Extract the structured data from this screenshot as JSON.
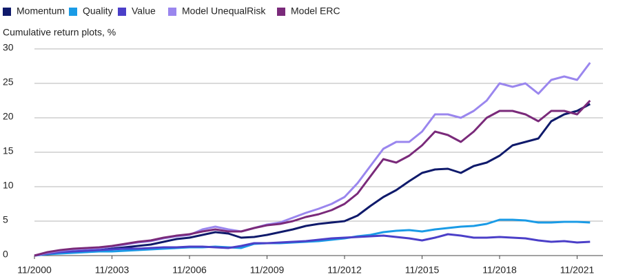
{
  "chart_data": {
    "type": "line",
    "subtitle": "Cumulative return plots, %",
    "x": [
      "11/2000",
      "05/2001",
      "11/2001",
      "05/2002",
      "11/2002",
      "05/2003",
      "11/2003",
      "05/2004",
      "11/2004",
      "05/2005",
      "11/2005",
      "05/2006",
      "11/2006",
      "05/2007",
      "11/2007",
      "05/2008",
      "11/2008",
      "05/2009",
      "11/2009",
      "05/2010",
      "11/2010",
      "05/2011",
      "11/2011",
      "05/2012",
      "11/2012",
      "05/2013",
      "11/2013",
      "05/2014",
      "11/2014",
      "05/2015",
      "11/2015",
      "05/2016",
      "11/2016",
      "05/2017",
      "11/2017",
      "05/2018",
      "11/2018",
      "05/2019",
      "11/2019",
      "05/2020",
      "11/2020",
      "05/2021",
      "11/2021",
      "05/2022"
    ],
    "series": [
      {
        "name": "Momentum",
        "color": "#0f1a6b",
        "values": [
          0,
          0.3,
          0.5,
          0.6,
          0.7,
          0.8,
          1.0,
          1.2,
          1.4,
          1.6,
          2.0,
          2.4,
          2.6,
          3.0,
          3.4,
          3.2,
          2.6,
          2.7,
          3.0,
          3.4,
          3.8,
          4.3,
          4.6,
          4.8,
          5.0,
          5.8,
          7.2,
          8.5,
          9.5,
          10.8,
          12.0,
          12.5,
          12.6,
          12.0,
          13.0,
          13.5,
          14.5,
          16.0,
          16.5,
          17.0,
          19.5,
          20.5,
          21.0,
          22.0
        ]
      },
      {
        "name": "Quality",
        "color": "#1a9be6",
        "values": [
          0,
          0.2,
          0.3,
          0.4,
          0.5,
          0.6,
          0.6,
          0.7,
          0.8,
          0.9,
          1.0,
          1.1,
          1.2,
          1.2,
          1.3,
          1.2,
          1.1,
          1.7,
          1.8,
          1.8,
          1.9,
          2.0,
          2.1,
          2.3,
          2.5,
          2.8,
          3.0,
          3.4,
          3.6,
          3.7,
          3.5,
          3.8,
          4.0,
          4.2,
          4.3,
          4.6,
          5.2,
          5.2,
          5.1,
          4.8,
          4.8,
          4.9,
          4.9,
          4.8
        ]
      },
      {
        "name": "Value",
        "color": "#4b3fc8",
        "values": [
          0,
          0.3,
          0.5,
          0.6,
          0.7,
          0.8,
          0.9,
          1.0,
          1.0,
          1.1,
          1.2,
          1.2,
          1.3,
          1.3,
          1.2,
          1.1,
          1.4,
          1.8,
          1.8,
          1.9,
          2.0,
          2.1,
          2.3,
          2.5,
          2.6,
          2.7,
          2.8,
          2.9,
          2.7,
          2.5,
          2.2,
          2.6,
          3.1,
          2.9,
          2.6,
          2.6,
          2.7,
          2.6,
          2.5,
          2.2,
          2.0,
          2.1,
          1.9,
          2.0
        ]
      },
      {
        "name": "Model UnequalRisk",
        "color": "#9a86ee",
        "values": [
          0,
          0.4,
          0.7,
          0.9,
          1.0,
          1.1,
          1.3,
          1.6,
          1.9,
          2.1,
          2.5,
          2.8,
          3.0,
          3.8,
          4.2,
          3.8,
          3.5,
          4.0,
          4.5,
          4.8,
          5.5,
          6.2,
          6.8,
          7.5,
          8.5,
          10.5,
          13.0,
          15.5,
          16.5,
          16.5,
          18.0,
          20.5,
          20.5,
          20.0,
          21.0,
          22.5,
          25.0,
          24.5,
          25.0,
          23.5,
          25.5,
          26.0,
          25.5,
          28.0
        ]
      },
      {
        "name": "Model ERC",
        "color": "#7a2a7a",
        "values": [
          0,
          0.5,
          0.8,
          1.0,
          1.1,
          1.2,
          1.4,
          1.7,
          2.0,
          2.2,
          2.6,
          2.9,
          3.1,
          3.5,
          3.8,
          3.5,
          3.5,
          4.0,
          4.4,
          4.6,
          5.0,
          5.6,
          6.0,
          6.6,
          7.5,
          9.0,
          11.5,
          14.0,
          13.5,
          14.5,
          16.0,
          18.0,
          17.5,
          16.5,
          18.0,
          20.0,
          21.0,
          21.0,
          20.5,
          19.5,
          21.0,
          21.0,
          20.5,
          22.5
        ]
      }
    ],
    "xlim": [
      "11/2000",
      "11/2022"
    ],
    "xticks": [
      "11/2000",
      "11/2003",
      "11/2006",
      "11/2009",
      "11/2012",
      "11/2015",
      "11/2018",
      "11/2021"
    ],
    "ylim": [
      0,
      30
    ],
    "yticks": [
      0,
      5,
      10,
      15,
      20,
      25,
      30
    ],
    "grid": true,
    "legend": "top"
  }
}
